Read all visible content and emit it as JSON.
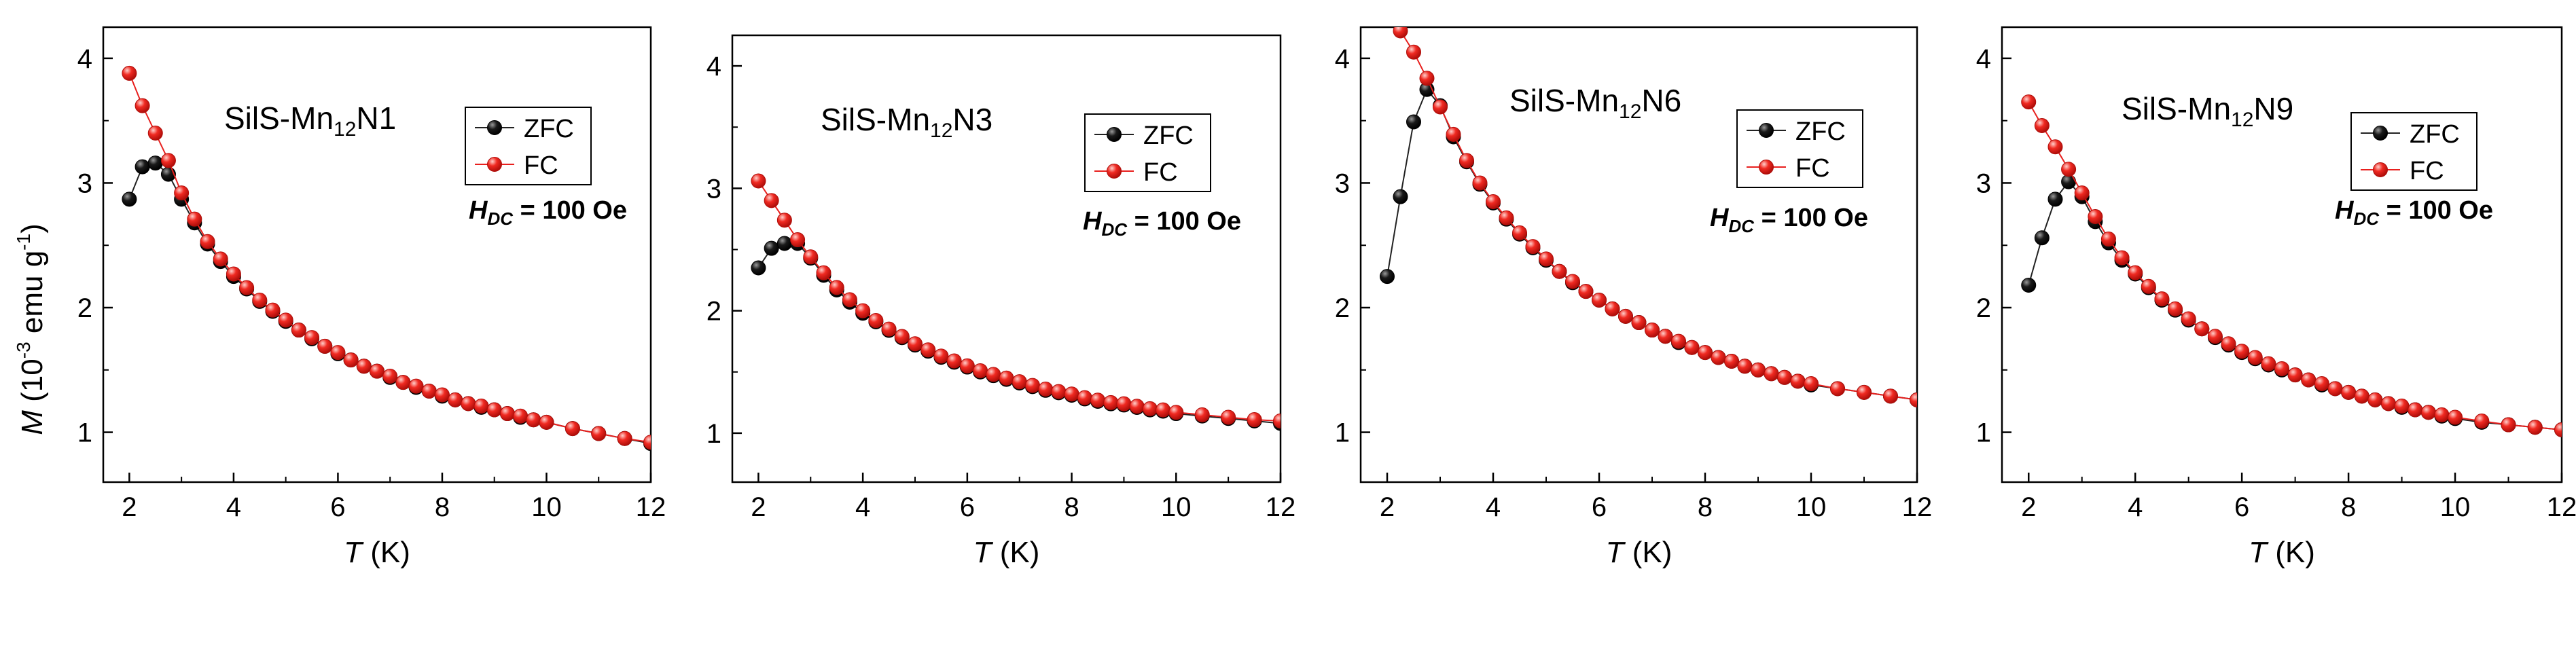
{
  "figure": {
    "ylabel": {
      "symbol": "M",
      "unit_open": " (10",
      "unit_exp": "-3",
      "unit_mid": " emu g",
      "unit_exp2": "-1",
      "unit_close": ")"
    }
  },
  "colors": {
    "zfc": "#000000",
    "fc": "#e8201e",
    "zfc_line": "#222222",
    "fc_line": "#e8201e"
  },
  "chart_data": [
    {
      "type": "scatter",
      "title": {
        "base": "SilS-Mn",
        "sub": "12",
        "suffix": "N1"
      },
      "annotation": {
        "h": "H",
        "sub": "DC",
        "value": " = 100 Oe"
      },
      "xlabel": {
        "symbol": "T",
        "unit": " (K)"
      },
      "xlim": [
        1.5,
        12
      ],
      "ylim": [
        0.6,
        4.25
      ],
      "xticks": [
        "2",
        "4",
        "6",
        "8",
        "10",
        "12"
      ],
      "yticks": [
        "1",
        "2",
        "3",
        "4"
      ],
      "legend": [
        "ZFC",
        "FC"
      ],
      "series": [
        {
          "name": "ZFC",
          "x": [
            2,
            2.25,
            2.5,
            2.75,
            3,
            3.25,
            3.5,
            3.75,
            4,
            4.25,
            4.5,
            4.75,
            5,
            5.25,
            5.5,
            5.75,
            6,
            6.25,
            6.5,
            6.75,
            7,
            7.25,
            7.5,
            7.75,
            8,
            8.25,
            8.5,
            8.75,
            9,
            9.25,
            9.5,
            9.75,
            10,
            10.5,
            11,
            11.5,
            12
          ],
          "values": [
            2.87,
            3.13,
            3.16,
            3.07,
            2.87,
            2.68,
            2.51,
            2.37,
            2.25,
            2.15,
            2.05,
            1.97,
            1.89,
            1.82,
            1.75,
            1.69,
            1.63,
            1.58,
            1.53,
            1.49,
            1.44,
            1.4,
            1.36,
            1.33,
            1.29,
            1.26,
            1.23,
            1.2,
            1.18,
            1.15,
            1.12,
            1.1,
            1.08,
            1.03,
            0.99,
            0.95,
            0.91
          ]
        },
        {
          "name": "FC",
          "x": [
            2,
            2.25,
            2.5,
            2.75,
            3,
            3.25,
            3.5,
            3.75,
            4,
            4.25,
            4.5,
            4.75,
            5,
            5.25,
            5.5,
            5.75,
            6,
            6.25,
            6.5,
            6.75,
            7,
            7.25,
            7.5,
            7.75,
            8,
            8.25,
            8.5,
            8.75,
            9,
            9.25,
            9.5,
            9.75,
            10,
            10.5,
            11,
            11.5,
            12
          ],
          "values": [
            3.88,
            3.62,
            3.4,
            3.18,
            2.92,
            2.71,
            2.53,
            2.39,
            2.27,
            2.16,
            2.06,
            1.98,
            1.9,
            1.82,
            1.76,
            1.69,
            1.64,
            1.58,
            1.53,
            1.49,
            1.45,
            1.4,
            1.37,
            1.33,
            1.3,
            1.26,
            1.23,
            1.21,
            1.18,
            1.15,
            1.13,
            1.1,
            1.08,
            1.03,
            0.99,
            0.95,
            0.92
          ]
        }
      ]
    },
    {
      "type": "scatter",
      "title": {
        "base": "SilS-Mn",
        "sub": "12",
        "suffix": "N3"
      },
      "annotation": {
        "h": "H",
        "sub": "DC",
        "value": " = 100 Oe"
      },
      "xlabel": {
        "symbol": "T",
        "unit": " (K)"
      },
      "xlim": [
        1.5,
        12
      ],
      "ylim": [
        0.6,
        4.25
      ],
      "xticks": [
        "2",
        "4",
        "6",
        "8",
        "10",
        "12"
      ],
      "yticks": [
        "1",
        "2",
        "3",
        "4"
      ],
      "legend": [
        "ZFC",
        "FC"
      ],
      "series": [
        {
          "name": "ZFC",
          "x": [
            2,
            2.25,
            2.5,
            2.75,
            3,
            3.25,
            3.5,
            3.75,
            4,
            4.25,
            4.5,
            4.75,
            5,
            5.25,
            5.5,
            5.75,
            6,
            6.25,
            6.5,
            6.75,
            7,
            7.25,
            7.5,
            7.75,
            8,
            8.25,
            8.5,
            8.75,
            9,
            9.25,
            9.5,
            9.75,
            10,
            10.5,
            11,
            11.5,
            12
          ],
          "values": [
            2.35,
            2.51,
            2.55,
            2.55,
            2.43,
            2.29,
            2.17,
            2.07,
            1.98,
            1.91,
            1.84,
            1.78,
            1.72,
            1.67,
            1.62,
            1.58,
            1.54,
            1.5,
            1.47,
            1.44,
            1.41,
            1.38,
            1.35,
            1.33,
            1.31,
            1.28,
            1.26,
            1.24,
            1.23,
            1.21,
            1.19,
            1.18,
            1.16,
            1.14,
            1.12,
            1.1,
            1.08
          ]
        },
        {
          "name": "FC",
          "x": [
            2,
            2.25,
            2.5,
            2.75,
            3,
            3.25,
            3.5,
            3.75,
            4,
            4.25,
            4.5,
            4.75,
            5,
            5.25,
            5.5,
            5.75,
            6,
            6.25,
            6.5,
            6.75,
            7,
            7.25,
            7.5,
            7.75,
            8,
            8.25,
            8.5,
            8.75,
            9,
            9.25,
            9.5,
            9.75,
            10,
            10.5,
            11,
            11.5,
            12
          ],
          "values": [
            3.06,
            2.9,
            2.74,
            2.58,
            2.44,
            2.31,
            2.19,
            2.09,
            2.0,
            1.92,
            1.85,
            1.79,
            1.73,
            1.68,
            1.63,
            1.59,
            1.55,
            1.51,
            1.48,
            1.45,
            1.42,
            1.39,
            1.36,
            1.34,
            1.32,
            1.29,
            1.27,
            1.25,
            1.24,
            1.22,
            1.2,
            1.19,
            1.17,
            1.15,
            1.13,
            1.11,
            1.1
          ]
        }
      ]
    },
    {
      "type": "scatter",
      "title": {
        "base": "SilS-Mn",
        "sub": "12",
        "suffix": "N6"
      },
      "annotation": {
        "h": "H",
        "sub": "DC",
        "value": " = 100 Oe"
      },
      "xlabel": {
        "symbol": "T",
        "unit": " (K)"
      },
      "xlim": [
        1.5,
        12
      ],
      "ylim": [
        0.6,
        4.25
      ],
      "xticks": [
        "2",
        "4",
        "6",
        "8",
        "10",
        "12"
      ],
      "yticks": [
        "1",
        "2",
        "3",
        "4"
      ],
      "legend": [
        "ZFC",
        "FC"
      ],
      "series": [
        {
          "name": "ZFC",
          "x": [
            2,
            2.25,
            2.5,
            2.75,
            3,
            3.25,
            3.5,
            3.75,
            4,
            4.25,
            4.5,
            4.75,
            5,
            5.25,
            5.5,
            5.75,
            6,
            6.25,
            6.5,
            6.75,
            7,
            7.25,
            7.5,
            7.75,
            8,
            8.25,
            8.5,
            8.75,
            9,
            9.25,
            9.5,
            9.75,
            10,
            10.5,
            11,
            11.5,
            12
          ],
          "values": [
            2.25,
            2.89,
            3.49,
            3.75,
            3.62,
            3.37,
            3.17,
            2.99,
            2.84,
            2.71,
            2.59,
            2.48,
            2.38,
            2.29,
            2.2,
            2.13,
            2.06,
            1.99,
            1.93,
            1.88,
            1.82,
            1.77,
            1.72,
            1.68,
            1.64,
            1.6,
            1.57,
            1.53,
            1.5,
            1.47,
            1.44,
            1.41,
            1.38,
            1.35,
            1.32,
            1.29,
            1.26
          ]
        },
        {
          "name": "FC",
          "x": [
            2.25,
            2.5,
            2.75,
            3,
            3.25,
            3.5,
            3.75,
            4,
            4.25,
            4.5,
            4.75,
            5,
            5.25,
            5.5,
            5.75,
            6,
            6.25,
            6.5,
            6.75,
            7,
            7.25,
            7.5,
            7.75,
            8,
            8.25,
            8.5,
            8.75,
            9,
            9.25,
            9.5,
            9.75,
            10,
            10.5,
            11,
            11.5,
            12
          ],
          "values": [
            4.22,
            4.05,
            3.84,
            3.61,
            3.39,
            3.18,
            3.0,
            2.85,
            2.72,
            2.6,
            2.49,
            2.39,
            2.29,
            2.21,
            2.13,
            2.06,
            1.99,
            1.93,
            1.88,
            1.82,
            1.77,
            1.73,
            1.68,
            1.64,
            1.6,
            1.57,
            1.53,
            1.5,
            1.47,
            1.44,
            1.41,
            1.39,
            1.35,
            1.32,
            1.29,
            1.26
          ]
        }
      ]
    },
    {
      "type": "scatter",
      "title": {
        "base": "SilS-Mn",
        "sub": "12",
        "suffix": "N9"
      },
      "annotation": {
        "h": "H",
        "sub": "DC",
        "value": " = 100 Oe"
      },
      "xlabel": {
        "symbol": "T",
        "unit": " (K)"
      },
      "xlim": [
        1.5,
        12
      ],
      "ylim": [
        0.6,
        4.25
      ],
      "xticks": [
        "2",
        "4",
        "6",
        "8",
        "10",
        "12"
      ],
      "yticks": [
        "1",
        "2",
        "3",
        "4"
      ],
      "legend": [
        "ZFC",
        "FC"
      ],
      "series": [
        {
          "name": "ZFC",
          "x": [
            2,
            2.25,
            2.5,
            2.75,
            3,
            3.25,
            3.5,
            3.75,
            4,
            4.25,
            4.5,
            4.75,
            5,
            5.25,
            5.5,
            5.75,
            6,
            6.25,
            6.5,
            6.75,
            7,
            7.25,
            7.5,
            7.75,
            8,
            8.25,
            8.5,
            8.75,
            9,
            9.25,
            9.5,
            9.75,
            10,
            10.5,
            11,
            11.5,
            12
          ],
          "values": [
            2.18,
            2.56,
            2.87,
            3.01,
            2.89,
            2.69,
            2.52,
            2.38,
            2.27,
            2.16,
            2.06,
            1.98,
            1.9,
            1.83,
            1.76,
            1.7,
            1.64,
            1.59,
            1.54,
            1.5,
            1.46,
            1.42,
            1.38,
            1.35,
            1.32,
            1.29,
            1.26,
            1.23,
            1.2,
            1.18,
            1.16,
            1.13,
            1.11,
            1.08,
            1.06,
            1.04,
            1.02
          ]
        },
        {
          "name": "FC",
          "x": [
            2,
            2.25,
            2.5,
            2.75,
            3,
            3.25,
            3.5,
            3.75,
            4,
            4.25,
            4.5,
            4.75,
            5,
            5.25,
            5.5,
            5.75,
            6,
            6.25,
            6.5,
            6.75,
            7,
            7.25,
            7.5,
            7.75,
            8,
            8.25,
            8.5,
            8.75,
            9,
            9.25,
            9.5,
            9.75,
            10,
            10.5,
            11,
            11.5,
            12
          ],
          "values": [
            3.65,
            3.46,
            3.29,
            3.11,
            2.92,
            2.73,
            2.55,
            2.4,
            2.28,
            2.17,
            2.07,
            1.99,
            1.91,
            1.83,
            1.77,
            1.71,
            1.65,
            1.6,
            1.55,
            1.51,
            1.46,
            1.42,
            1.39,
            1.35,
            1.32,
            1.29,
            1.26,
            1.23,
            1.21,
            1.18,
            1.16,
            1.14,
            1.12,
            1.09,
            1.06,
            1.04,
            1.02
          ]
        }
      ]
    }
  ]
}
